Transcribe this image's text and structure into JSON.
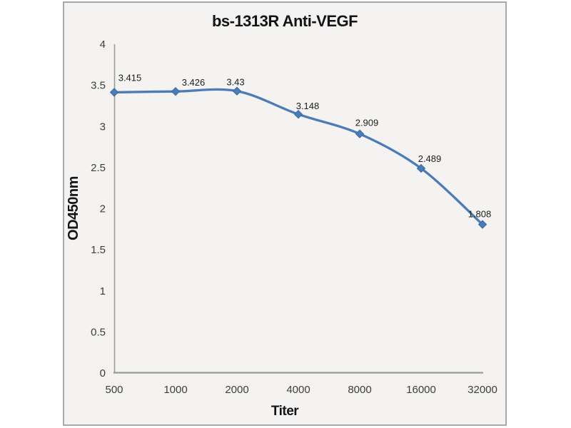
{
  "chart_data": {
    "type": "line",
    "title": "bs-1313R Anti-VEGF",
    "xlabel": "Titer",
    "ylabel": "OD450nm",
    "categories": [
      "500",
      "1000",
      "2000",
      "4000",
      "8000",
      "16000",
      "32000"
    ],
    "series": [
      {
        "name": "OD450nm",
        "values": [
          3.415,
          3.426,
          3.43,
          3.148,
          2.909,
          2.489,
          1.808
        ],
        "data_labels": [
          "3.415",
          "3.426",
          "3.43",
          "3.148",
          "2.909",
          "2.489",
          "1.808"
        ]
      }
    ],
    "ylim": [
      0,
      4
    ],
    "ytick_step": 0.5,
    "grid": false,
    "legend_position": "none",
    "marker": "diamond",
    "line_style": "smooth",
    "colors": {
      "series": "#4b7cb8",
      "marker_edge": "#3a6aa0",
      "axis_line": "#9a9a9a",
      "tick_label": "#3d3d3d",
      "data_label": "#1d1d1d",
      "title_text": "#141414",
      "plot_background": "#f4f3f1",
      "frame_border": "#a8a8a8",
      "page_background": "#ffffff"
    }
  }
}
